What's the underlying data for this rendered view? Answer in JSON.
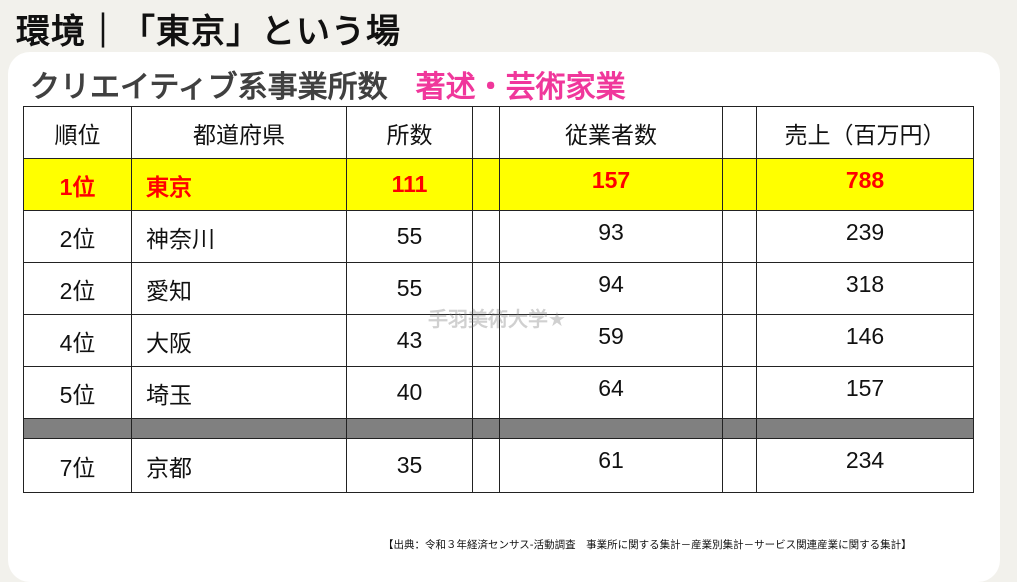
{
  "title": "環境｜「東京」という場",
  "subtitle": "クリエイティブ系事業所数",
  "category": "著述・芸術家業",
  "headers": [
    "順位",
    "都道府県",
    "所数",
    "",
    "従業者数",
    "",
    "売上（百万円）"
  ],
  "rows": [
    {
      "rank": "1位",
      "pref": "東京",
      "offices": "111",
      "employees": "157",
      "sales": "788",
      "highlight": true
    },
    {
      "rank": "2位",
      "pref": "神奈川",
      "offices": "55",
      "employees": "93",
      "sales": "239"
    },
    {
      "rank": "2位",
      "pref": "愛知",
      "offices": "55",
      "employees": "94",
      "sales": "318"
    },
    {
      "rank": "4位",
      "pref": "大阪",
      "offices": "43",
      "employees": "59",
      "sales": "146"
    },
    {
      "rank": "5位",
      "pref": "埼玉",
      "offices": "40",
      "employees": "64",
      "sales": "157"
    },
    {
      "rank": "7位",
      "pref": "京都",
      "offices": "35",
      "employees": "61",
      "sales": "234"
    }
  ],
  "watermark": "手羽美術大学★",
  "source": "【出典：令和３年経済センサス-活動調査　事業所に関する集計－産業別集計－サービス関連産業に関する集計】",
  "colors": {
    "highlight_bg": "#ffff00",
    "highlight_text": "#ff0000",
    "category": "#f0379b",
    "gap_row": "#808080"
  }
}
